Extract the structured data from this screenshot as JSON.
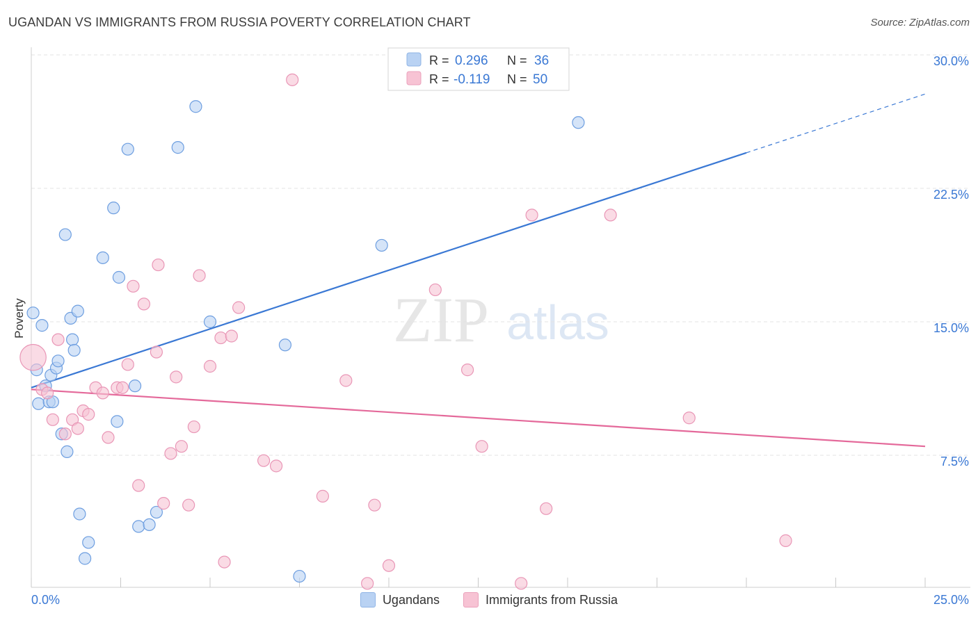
{
  "title": "UGANDAN VS IMMIGRANTS FROM RUSSIA POVERTY CORRELATION CHART",
  "source": "Source: ZipAtlas.com",
  "watermark": {
    "zip": "ZIP",
    "atlas": "atlas"
  },
  "colors": {
    "blue": "#3a78d4",
    "blue_fill": "#b9d2f3",
    "pink": "#e4699a",
    "pink_fill": "#f7c3d4",
    "axis_label": "#3a78d4",
    "grid": "#e3e3e3"
  },
  "stats_legend": [
    {
      "r_label": "R =",
      "r_value": "0.296",
      "n_label": "N =",
      "n_value": "36"
    },
    {
      "r_label": "R =",
      "r_value": "-0.119",
      "n_label": "N =",
      "n_value": "50"
    }
  ],
  "chart_data": {
    "type": "scatter",
    "title": "UGANDAN VS IMMIGRANTS FROM RUSSIA POVERTY CORRELATION CHART",
    "xlabel": "",
    "ylabel": "Poverty",
    "xlim": [
      0,
      25
    ],
    "ylim": [
      0,
      31
    ],
    "x_tick_labels": [
      "0.0%",
      "25.0%"
    ],
    "y_ticks": [
      7.5,
      15.0,
      22.5,
      30.0
    ],
    "y_tick_labels": [
      "7.5%",
      "15.0%",
      "22.5%",
      "30.0%"
    ],
    "grid": "horizontal dashed",
    "legend_position": "bottom",
    "series": [
      {
        "name": "Ugandans",
        "color": "#3a78d4",
        "points": [
          [
            0.05,
            15.5,
            1
          ],
          [
            0.3,
            14.8,
            1
          ],
          [
            0.15,
            12.3,
            1
          ],
          [
            0.2,
            10.4,
            1
          ],
          [
            0.4,
            11.4,
            1
          ],
          [
            0.5,
            10.5,
            1
          ],
          [
            0.6,
            10.5,
            1
          ],
          [
            0.55,
            12.0,
            1
          ],
          [
            0.7,
            12.4,
            1
          ],
          [
            0.75,
            12.8,
            1
          ],
          [
            0.85,
            8.7,
            1
          ],
          [
            1.0,
            7.7,
            1
          ],
          [
            1.1,
            15.2,
            1
          ],
          [
            1.15,
            14.0,
            1
          ],
          [
            1.2,
            13.4,
            1
          ],
          [
            1.3,
            15.6,
            1
          ],
          [
            0.95,
            19.9,
            1
          ],
          [
            1.35,
            4.2,
            1
          ],
          [
            1.5,
            1.7,
            1
          ],
          [
            1.6,
            2.6,
            1
          ],
          [
            2.0,
            18.6,
            1
          ],
          [
            2.3,
            21.4,
            1
          ],
          [
            2.4,
            9.4,
            1
          ],
          [
            2.45,
            17.5,
            1
          ],
          [
            2.7,
            24.7,
            1
          ],
          [
            2.9,
            11.4,
            1
          ],
          [
            3.0,
            3.5,
            1
          ],
          [
            3.3,
            3.6,
            1
          ],
          [
            3.5,
            4.3,
            1
          ],
          [
            4.1,
            24.8,
            1
          ],
          [
            4.6,
            27.1,
            1
          ],
          [
            5.0,
            15.0,
            1
          ],
          [
            7.1,
            13.7,
            1
          ],
          [
            7.5,
            0.7,
            1
          ],
          [
            9.8,
            19.3,
            1
          ],
          [
            15.3,
            26.2,
            1
          ]
        ],
        "trend": {
          "x": [
            0.0,
            20.0
          ],
          "y": [
            11.3,
            24.5
          ],
          "extension_x": [
            20.0,
            25.0
          ],
          "extension_y": [
            24.5,
            27.8
          ]
        }
      },
      {
        "name": "Immigrants from Russia",
        "color": "#e4699a",
        "points": [
          [
            0.05,
            13.0,
            2.2
          ],
          [
            0.3,
            11.2,
            1
          ],
          [
            0.45,
            11.0,
            1
          ],
          [
            0.6,
            9.5,
            1
          ],
          [
            0.75,
            14.0,
            1
          ],
          [
            0.95,
            8.7,
            1
          ],
          [
            1.15,
            9.5,
            1
          ],
          [
            1.3,
            9.0,
            1
          ],
          [
            1.45,
            10.0,
            1
          ],
          [
            1.6,
            9.8,
            1
          ],
          [
            1.8,
            11.3,
            1
          ],
          [
            2.0,
            11.0,
            1
          ],
          [
            2.15,
            8.5,
            1
          ],
          [
            2.4,
            11.3,
            1
          ],
          [
            2.55,
            11.3,
            1
          ],
          [
            2.7,
            12.6,
            1
          ],
          [
            2.85,
            17.0,
            1
          ],
          [
            3.0,
            5.8,
            1
          ],
          [
            3.15,
            16.0,
            1
          ],
          [
            3.5,
            13.3,
            1
          ],
          [
            3.55,
            18.2,
            1
          ],
          [
            3.7,
            4.8,
            1
          ],
          [
            3.9,
            7.6,
            1
          ],
          [
            4.05,
            11.9,
            1
          ],
          [
            4.2,
            8.0,
            1
          ],
          [
            4.4,
            4.7,
            1
          ],
          [
            4.55,
            9.1,
            1
          ],
          [
            4.7,
            17.6,
            1
          ],
          [
            5.0,
            12.5,
            1
          ],
          [
            5.3,
            14.1,
            1
          ],
          [
            5.4,
            1.5,
            1
          ],
          [
            5.6,
            14.2,
            1
          ],
          [
            5.8,
            15.8,
            1
          ],
          [
            6.5,
            7.2,
            1
          ],
          [
            6.85,
            6.9,
            1
          ],
          [
            7.3,
            28.6,
            1
          ],
          [
            8.15,
            5.2,
            1
          ],
          [
            8.8,
            11.7,
            1
          ],
          [
            9.4,
            0.3,
            1
          ],
          [
            9.6,
            4.7,
            1
          ],
          [
            10.0,
            1.3,
            1
          ],
          [
            11.3,
            16.8,
            1
          ],
          [
            12.2,
            12.3,
            1
          ],
          [
            12.6,
            8.0,
            1
          ],
          [
            13.7,
            0.3,
            1
          ],
          [
            14.0,
            21.0,
            1
          ],
          [
            14.4,
            4.5,
            1
          ],
          [
            16.2,
            21.0,
            1
          ],
          [
            18.4,
            9.6,
            1
          ],
          [
            21.1,
            2.7,
            1
          ]
        ],
        "trend": {
          "x": [
            0.0,
            25.0
          ],
          "y": [
            11.2,
            8.0
          ]
        }
      }
    ]
  }
}
